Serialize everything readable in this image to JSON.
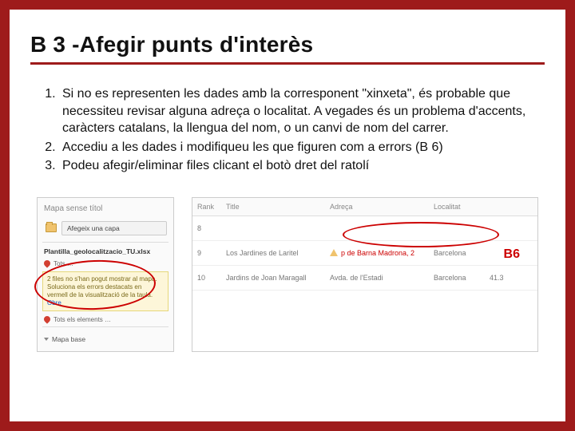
{
  "title": "B 3 -Afegir punts d'interès",
  "list": {
    "item1": "Si no es representen les dades amb la corresponent \"xinxeta\", és probable que necessiteu revisar alguna adreça o localitat. A vegades és un problema d'accents, caràcters catalans, la llengua del nom, o un canvi de nom del carrer.",
    "item2": "Accediu a les dades i modifiqueu les que figuren com a errors (B 6)",
    "item3": "Podeu afegir/eliminar files clicant el botò dret del ratolí"
  },
  "left_panel": {
    "map_title": "Mapa sense títol",
    "add_layer": "Afegeix una capa",
    "file_name": "Plantilla_geolocalitzacio_TU.xlsx",
    "marker1": "Tots …",
    "warning": "2 files no s'han pogut mostrar al mapa. Soluciona els errors destacats en vermell de la visualització de la taula.",
    "warning_link": "Obre",
    "marker2": "Tots els elements …",
    "base_map": "Mapa base"
  },
  "table": {
    "headers": {
      "rank": "Rank",
      "title": "Title",
      "addr": "Adreça",
      "loc": "Localitat",
      "extra": ""
    },
    "row1": {
      "rank": "8",
      "title": "",
      "addr": "",
      "loc": "",
      "extra": ""
    },
    "row2": {
      "rank": "9",
      "title": "Los Jardines de Laritel",
      "addr": "p de Barna Madrona, 2",
      "loc": "Barcelona",
      "extra": ""
    },
    "row3": {
      "rank": "10",
      "title": "Jardins de Joan Maragall",
      "addr": "Avda. de l'Estadi",
      "loc": "Barcelona",
      "extra": "41.3"
    }
  },
  "callout": "B6",
  "colors": {
    "accent": "#9e1b1b",
    "error": "#cc0000",
    "warning_bg": "#fdf6d9"
  }
}
